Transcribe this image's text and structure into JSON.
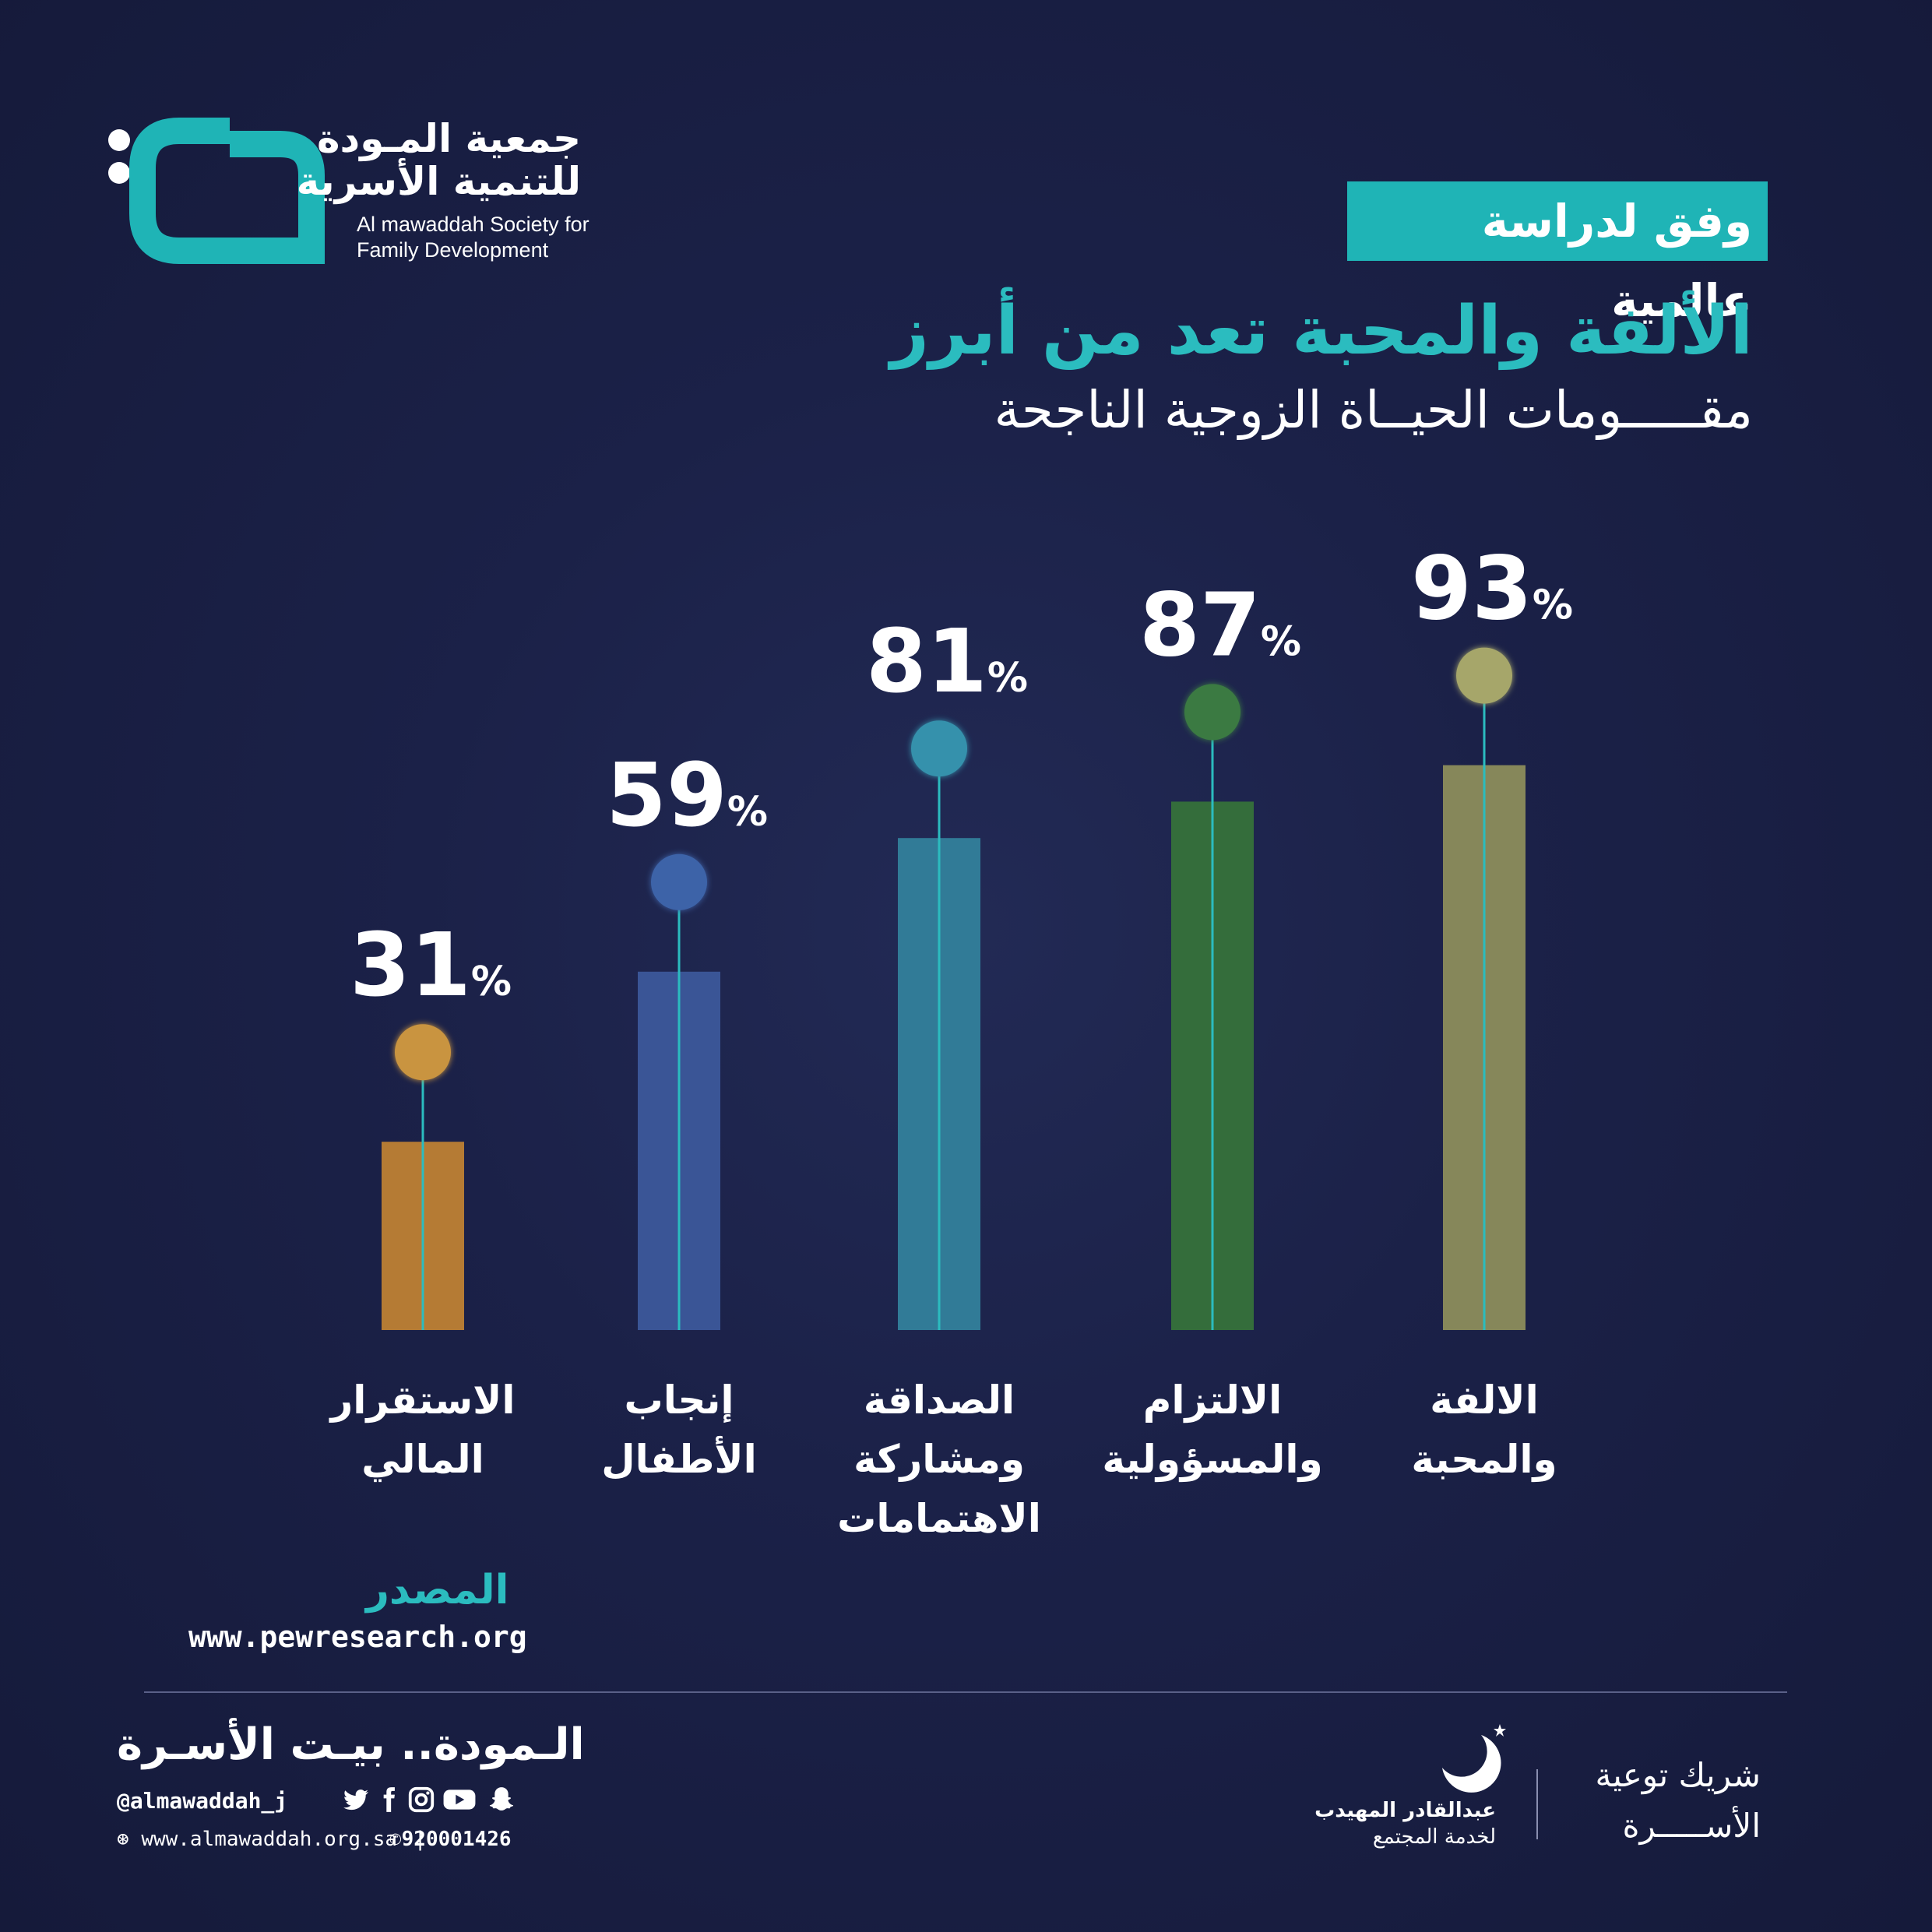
{
  "org": {
    "name_ar_line1": "جمعية المـودة",
    "name_ar_line2": "للتنمية الأسرية",
    "name_en_line1": "Al mawaddah Society for",
    "name_en_line2": "Family Development",
    "brand_color": "#1fb4b6"
  },
  "header": {
    "tagline": "وفق لدراسة عالمية",
    "title": "الألفة والمحبة تعد من أبرز",
    "subtitle": "مقـــــومات الحيــاة الزوجية الناجحة"
  },
  "chart_data": {
    "type": "bar",
    "categories": [
      [
        "الاستقرار",
        "المالي"
      ],
      [
        "إنجاب",
        "الأطفال"
      ],
      [
        "الصداقة",
        "ومشاركة",
        "الاهتمامات"
      ],
      [
        "الالتزام",
        "والمسؤولية"
      ],
      [
        "الالفة",
        "والمحبة"
      ]
    ],
    "values": [
      31,
      59,
      81,
      87,
      93
    ],
    "value_suffix": "%",
    "colors": [
      "#b57b34",
      "#3a5596",
      "#317b97",
      "#346d3b",
      "#86875a"
    ],
    "dot_colors": [
      "#c99440",
      "#3d64a8",
      "#3591ac",
      "#3b7a43",
      "#a6a66a"
    ],
    "ylim": [
      0,
      100
    ]
  },
  "source": {
    "label": "المصدر",
    "url": "www.pewresearch.org"
  },
  "footer": {
    "slogan": "الـمودة.. بيـت الأسـرة",
    "handle": "@almawaddah_j",
    "social_icons": [
      "twitter-icon",
      "facebook-icon",
      "instagram-icon",
      "youtube-icon",
      "snapchat-icon"
    ],
    "website": "www.almawaddah.org.sa",
    "phone": "920001426",
    "partner_line1": "شريك توعية",
    "partner_line2": "الأســـــرة",
    "sponsor_line1": "عبدالقادر المهيدب",
    "sponsor_line2": "لخدمة المجتمع"
  }
}
